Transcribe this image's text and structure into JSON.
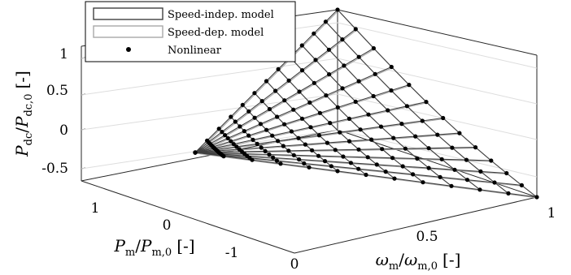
{
  "chart_data": {
    "type": "surface3d",
    "legend": {
      "position": "top-left",
      "entries": [
        {
          "label": "Speed-indep. model",
          "color": "#404040",
          "style": "line"
        },
        {
          "label": "Speed-dep. model",
          "color": "#a8a8a8",
          "style": "line"
        },
        {
          "label": "Nonlinear",
          "color": "#000000",
          "style": "marker"
        }
      ]
    },
    "axes": {
      "x": {
        "label_main": "ω",
        "label_main_sub": "m",
        "label_den": "ω",
        "label_den_sub": "m,0",
        "label_unit": "[-]",
        "ticks": [
          {
            "value": 0,
            "label": "0"
          },
          {
            "value": 0.5,
            "label": "0.5"
          },
          {
            "value": 1,
            "label": "1"
          }
        ],
        "range": [
          0,
          1
        ]
      },
      "y": {
        "label_main": "P",
        "label_main_sub": "m",
        "label_den": "P",
        "label_den_sub": "m,0",
        "label_unit": "[-]",
        "ticks": [
          {
            "value": 1,
            "label": "1"
          },
          {
            "value": 0,
            "label": "0"
          },
          {
            "value": -1,
            "label": "-1"
          }
        ],
        "range": [
          -1,
          1
        ]
      },
      "z": {
        "label_main": "P",
        "label_main_sub": "dc",
        "label_den": "P",
        "label_den_sub": "dc,0",
        "label_unit": "[-]",
        "ticks": [
          {
            "value": 1,
            "label": "1"
          },
          {
            "value": 0.5,
            "label": "0.5"
          },
          {
            "value": 0,
            "label": "0"
          },
          {
            "value": -0.5,
            "label": "-0.5"
          }
        ],
        "range": [
          -0.65,
          1.25
        ]
      }
    },
    "surface": {
      "description_of_data": "Pdc/Pdc,0 versus ωm/ωm,0 and Pm/Pm,0; grid spans the region where |Pm| ≤ ωm, with surface value ≈ Pm (approx. bilinear wedge).",
      "omega_grid": [
        0.0,
        0.0833,
        0.1667,
        0.25,
        0.3333,
        0.4167,
        0.5,
        0.5833,
        0.6667,
        0.75,
        0.8333,
        0.9167,
        1.0
      ],
      "pm_grid_fraction": [
        -1.0,
        -0.8333,
        -0.6667,
        -0.5,
        -0.3333,
        -0.1667,
        0.0,
        0.1667,
        0.3333,
        0.5,
        0.6667,
        0.8333,
        1.0
      ],
      "corner_values": [
        {
          "omega": 1.0,
          "pm": 1.0,
          "pdc": 1.2
        },
        {
          "omega": 1.0,
          "pm": -1.0,
          "pdc": -0.7
        },
        {
          "omega": 0.0,
          "pm": 0.0,
          "pdc": -0.1
        }
      ]
    },
    "view": {
      "azimuth": "-37.5",
      "grid": true,
      "box": true
    }
  }
}
